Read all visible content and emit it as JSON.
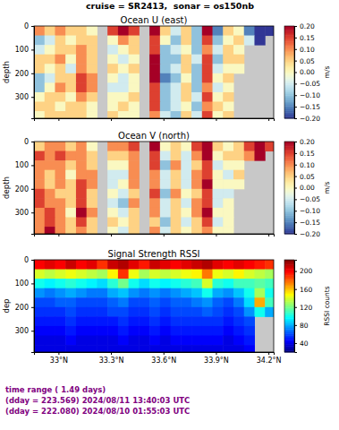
{
  "title": "cruise = SR2413,  sonar = os150nb",
  "notes": [
    "time range ( 1.49 days)",
    "(dday = 223.569) 2024/08/11 13:40:03 UTC",
    "(dday = 222.080) 2024/08/10 01:55:03 UTC"
  ],
  "chart_data": [
    {
      "type": "heatmap",
      "title": "Ocean U (east)",
      "y_label": "depth",
      "color": "RdYlBu_r",
      "tick_labels": "y",
      "x": [
        32.89,
        32.95,
        33.01,
        33.07,
        33.13,
        33.19,
        33.25,
        33.31,
        33.37,
        33.43,
        33.49,
        33.55,
        33.61,
        33.67,
        33.73,
        33.79,
        33.85,
        33.91,
        33.97,
        34.03,
        34.09,
        34.15,
        34.21
      ],
      "y": [
        20,
        60,
        100,
        140,
        180,
        220,
        260,
        300,
        340,
        380
      ],
      "xlim": [
        32.86,
        34.23
      ],
      "xticks": [
        33,
        33.3,
        33.6,
        33.9,
        34.2
      ],
      "ylim": [
        390,
        0
      ],
      "yticks": [
        0,
        100,
        200,
        300
      ],
      "values": [
        [
          0.1,
          0.05,
          0.1,
          0.05,
          0.05,
          0,
          null,
          0.15,
          0.2,
          0.15,
          null,
          0.2,
          0.05,
          -0.05,
          0.05,
          -0.1,
          0.2,
          -0.15,
          0.05,
          0,
          -0.15,
          -0.2,
          -0.2
        ],
        [
          -0.1,
          -0.05,
          0.05,
          0,
          0.05,
          0.05,
          null,
          0,
          0.1,
          0.05,
          null,
          0.15,
          0,
          -0.1,
          0.05,
          -0.1,
          0.15,
          -0.1,
          0,
          0.05,
          -0.05,
          -0.2,
          null
        ],
        [
          -0.05,
          0,
          0.05,
          0.05,
          0.1,
          0.05,
          null,
          -0.05,
          0,
          0.05,
          null,
          0.15,
          -0.1,
          -0.05,
          0,
          -0.1,
          0.1,
          -0.05,
          0.05,
          0,
          null,
          null,
          null
        ],
        [
          0.05,
          0.05,
          0.1,
          0,
          0.1,
          0.05,
          null,
          0,
          -0.05,
          0,
          null,
          0.2,
          -0.1,
          -0.1,
          0.05,
          -0.05,
          0.15,
          -0.1,
          0.05,
          0.05,
          null,
          null,
          null
        ],
        [
          0.05,
          0,
          0.05,
          -0.05,
          0.1,
          0.05,
          null,
          0.05,
          0,
          0.05,
          null,
          0.2,
          -0.1,
          -0.05,
          0.05,
          -0.1,
          0.15,
          -0.05,
          0,
          0,
          null,
          null,
          null
        ],
        [
          -0.1,
          -0.05,
          0.05,
          0.05,
          0.15,
          0.1,
          null,
          0,
          -0.05,
          0,
          null,
          0.2,
          -0.15,
          -0.1,
          0,
          -0.1,
          0.15,
          0,
          0.05,
          null,
          null,
          null,
          null
        ],
        [
          -0.1,
          0,
          0.1,
          0.05,
          0.15,
          0.1,
          null,
          -0.05,
          -0.05,
          0,
          null,
          0.15,
          -0.1,
          -0.05,
          0.05,
          -0.1,
          0.1,
          -0.05,
          0,
          null,
          null,
          null,
          null
        ],
        [
          0,
          0.05,
          0.05,
          0,
          0.1,
          0.05,
          null,
          0,
          0,
          0.05,
          null,
          0.15,
          -0.1,
          -0.05,
          0.05,
          -0.05,
          0.15,
          0,
          0.05,
          null,
          null,
          null,
          null
        ],
        [
          0.05,
          0.05,
          0,
          0.05,
          0.05,
          0,
          null,
          0,
          0.05,
          0,
          null,
          0.15,
          -0.1,
          -0.05,
          0,
          -0.1,
          0.1,
          0.05,
          0,
          null,
          null,
          null,
          null
        ],
        [
          0,
          0.05,
          0.05,
          0.05,
          0.05,
          0,
          null,
          0.05,
          0,
          0,
          null,
          0.1,
          -0.05,
          -0.1,
          0.05,
          -0.05,
          0.15,
          0,
          0.05,
          null,
          null,
          null,
          null
        ]
      ],
      "colorbar": {
        "label": "m/s",
        "range": [
          -0.2,
          0.2
        ],
        "ticks": [
          {
            "value": -0.2,
            "label": "−0.20"
          },
          {
            "value": -0.15,
            "label": "−0.15"
          },
          {
            "value": -0.1,
            "label": "−0.10"
          },
          {
            "value": -0.05,
            "label": "−0.05"
          },
          {
            "value": 0,
            "label": "0.00"
          },
          {
            "value": 0.05,
            "label": "0.05"
          },
          {
            "value": 0.1,
            "label": "0.10"
          },
          {
            "value": 0.15,
            "label": "0.15"
          },
          {
            "value": 0.2,
            "label": "0.20"
          }
        ]
      }
    },
    {
      "type": "heatmap",
      "title": "Ocean V (north)",
      "y_label": "depth",
      "color": "RdYlBu_r",
      "tick_labels": "y",
      "x": [
        32.89,
        32.95,
        33.01,
        33.07,
        33.13,
        33.19,
        33.25,
        33.31,
        33.37,
        33.43,
        33.49,
        33.55,
        33.61,
        33.67,
        33.73,
        33.79,
        33.85,
        33.91,
        33.97,
        34.03,
        34.09,
        34.15,
        34.21
      ],
      "y": [
        20,
        60,
        100,
        140,
        180,
        220,
        260,
        300,
        340,
        380
      ],
      "xlim": [
        32.86,
        34.23
      ],
      "xticks": [
        33,
        33.3,
        33.6,
        33.9,
        34.2
      ],
      "ylim": [
        390,
        0
      ],
      "yticks": [
        0,
        100,
        200,
        300
      ],
      "values": [
        [
          0.05,
          0.1,
          0.1,
          0.05,
          0.1,
          0,
          null,
          0.1,
          0.1,
          0.15,
          null,
          0.2,
          0,
          0.05,
          0,
          0.15,
          0.2,
          0.05,
          0,
          0.05,
          0.15,
          0.2,
          0.15
        ],
        [
          0.15,
          0.1,
          0.15,
          0.1,
          0.1,
          0.05,
          null,
          0.05,
          0.05,
          0.1,
          null,
          0.15,
          -0.05,
          0.05,
          -0.05,
          0.1,
          0.2,
          0,
          0.05,
          0.05,
          0.1,
          0.2,
          null
        ],
        [
          0.1,
          0.1,
          0.1,
          0.05,
          0.1,
          0.05,
          null,
          0,
          0,
          0.1,
          null,
          0.15,
          -0.1,
          0.1,
          -0.05,
          0.05,
          0.15,
          -0.05,
          0,
          0,
          null,
          null,
          null
        ],
        [
          0.1,
          0.05,
          0.1,
          0,
          0.1,
          0.1,
          null,
          -0.05,
          -0.05,
          0.1,
          null,
          0.1,
          -0.05,
          0.05,
          -0.05,
          0.1,
          0.15,
          0,
          -0.05,
          0.05,
          null,
          null,
          null
        ],
        [
          0.1,
          0.05,
          0.1,
          0.05,
          0.15,
          0.1,
          null,
          -0.05,
          0,
          0.1,
          null,
          0.1,
          -0.05,
          0.05,
          -0.05,
          0.1,
          0.2,
          0,
          0,
          0,
          null,
          null,
          null
        ],
        [
          0.15,
          0.1,
          0.05,
          0.05,
          0.15,
          0.05,
          null,
          0,
          -0.05,
          0.05,
          null,
          0.15,
          -0.1,
          0.1,
          0,
          0.05,
          0.15,
          -0.05,
          -0.05,
          null,
          null,
          null,
          null
        ],
        [
          0.15,
          0.1,
          0.1,
          0.05,
          0.15,
          0.05,
          null,
          -0.05,
          -0.1,
          0.1,
          null,
          0.1,
          -0.05,
          0.05,
          -0.05,
          0.1,
          0.15,
          -0.05,
          0,
          null,
          null,
          null,
          null
        ],
        [
          0.1,
          0.15,
          0.1,
          0,
          0.2,
          0.1,
          null,
          0,
          -0.05,
          0.05,
          null,
          0.1,
          -0.05,
          0.05,
          0,
          0.1,
          0.2,
          0,
          0,
          null,
          null,
          null,
          null
        ],
        [
          0.1,
          0.15,
          0.1,
          0.05,
          0.15,
          0.05,
          null,
          0.05,
          0,
          0.05,
          null,
          0.05,
          -0.1,
          0.05,
          -0.05,
          0.05,
          0.15,
          -0.05,
          0,
          null,
          null,
          null,
          null
        ],
        [
          0.1,
          0.2,
          0.1,
          0.05,
          0.1,
          0.05,
          null,
          0,
          -0.05,
          0.05,
          null,
          0.1,
          -0.05,
          0.05,
          0,
          0.05,
          0.1,
          0,
          0,
          null,
          null,
          null,
          null
        ]
      ],
      "colorbar": {
        "label": "m/s",
        "range": [
          -0.2,
          0.2
        ],
        "ticks": [
          {
            "value": -0.2,
            "label": "−0.20"
          },
          {
            "value": -0.15,
            "label": "−0.15"
          },
          {
            "value": -0.1,
            "label": "−0.10"
          },
          {
            "value": -0.05,
            "label": "−0.05"
          },
          {
            "value": 0,
            "label": "0.00"
          },
          {
            "value": 0.05,
            "label": "0.05"
          },
          {
            "value": 0.1,
            "label": "0.10"
          },
          {
            "value": 0.15,
            "label": "0.15"
          },
          {
            "value": 0.2,
            "label": "0.20"
          }
        ]
      }
    },
    {
      "type": "heatmap",
      "title": "Signal Strength RSSI",
      "y_label": "dep",
      "color": "jet",
      "x": [
        32.89,
        32.95,
        33.01,
        33.07,
        33.13,
        33.19,
        33.25,
        33.31,
        33.37,
        33.43,
        33.49,
        33.55,
        33.61,
        33.67,
        33.73,
        33.79,
        33.85,
        33.91,
        33.97,
        34.03,
        34.09,
        34.15,
        34.21
      ],
      "y": [
        20,
        60,
        100,
        140,
        180,
        220,
        260,
        300,
        340,
        380
      ],
      "xlim": [
        32.86,
        34.23
      ],
      "xticks": [
        {
          "value": 33,
          "label": "33°N"
        },
        {
          "value": 33.3,
          "label": "33.3°N"
        },
        {
          "value": 33.6,
          "label": "33.6°N"
        },
        {
          "value": 33.9,
          "label": "33.9°N"
        },
        {
          "value": 34.2,
          "label": "34.2°N"
        }
      ],
      "ylim": [
        390,
        0
      ],
      "yticks": [
        0,
        100,
        200,
        300
      ],
      "values": [
        [
          200,
          205,
          200,
          210,
          200,
          205,
          190,
          210,
          215,
          205,
          195,
          210,
          205,
          200,
          205,
          210,
          215,
          205,
          200,
          205,
          200,
          195,
          190
        ],
        [
          140,
          135,
          140,
          145,
          140,
          135,
          130,
          150,
          190,
          145,
          130,
          140,
          135,
          140,
          145,
          150,
          175,
          145,
          140,
          150,
          140,
          135,
          130
        ],
        [
          100,
          95,
          100,
          105,
          100,
          95,
          90,
          105,
          120,
          100,
          90,
          100,
          95,
          100,
          105,
          110,
          140,
          105,
          100,
          110,
          110,
          115,
          110
        ],
        [
          75,
          70,
          75,
          80,
          75,
          70,
          70,
          80,
          85,
          75,
          70,
          75,
          70,
          75,
          80,
          85,
          100,
          80,
          75,
          85,
          100,
          130,
          100
        ],
        [
          60,
          60,
          65,
          65,
          60,
          60,
          60,
          65,
          70,
          60,
          60,
          65,
          60,
          65,
          65,
          70,
          75,
          65,
          60,
          70,
          90,
          165,
          110
        ],
        [
          55,
          55,
          55,
          60,
          55,
          55,
          55,
          60,
          60,
          55,
          55,
          60,
          55,
          60,
          60,
          60,
          65,
          60,
          55,
          60,
          75,
          100,
          80
        ],
        [
          50,
          50,
          50,
          55,
          50,
          50,
          50,
          50,
          55,
          50,
          50,
          55,
          50,
          55,
          55,
          55,
          55,
          55,
          50,
          55,
          60,
          null,
          null
        ],
        [
          45,
          45,
          45,
          50,
          45,
          45,
          45,
          45,
          50,
          45,
          45,
          50,
          45,
          50,
          50,
          50,
          50,
          50,
          45,
          50,
          55,
          null,
          null
        ],
        [
          40,
          40,
          40,
          45,
          40,
          40,
          40,
          40,
          45,
          40,
          40,
          45,
          40,
          45,
          45,
          45,
          45,
          45,
          40,
          45,
          50,
          null,
          null
        ],
        [
          40,
          40,
          40,
          40,
          40,
          40,
          40,
          40,
          40,
          40,
          40,
          40,
          40,
          40,
          40,
          40,
          40,
          40,
          40,
          40,
          45,
          null,
          null
        ]
      ],
      "colorbar": {
        "label": "RSSI counts",
        "range": [
          20,
          225
        ],
        "ticks": [
          40,
          80,
          120,
          160,
          200
        ]
      }
    }
  ]
}
